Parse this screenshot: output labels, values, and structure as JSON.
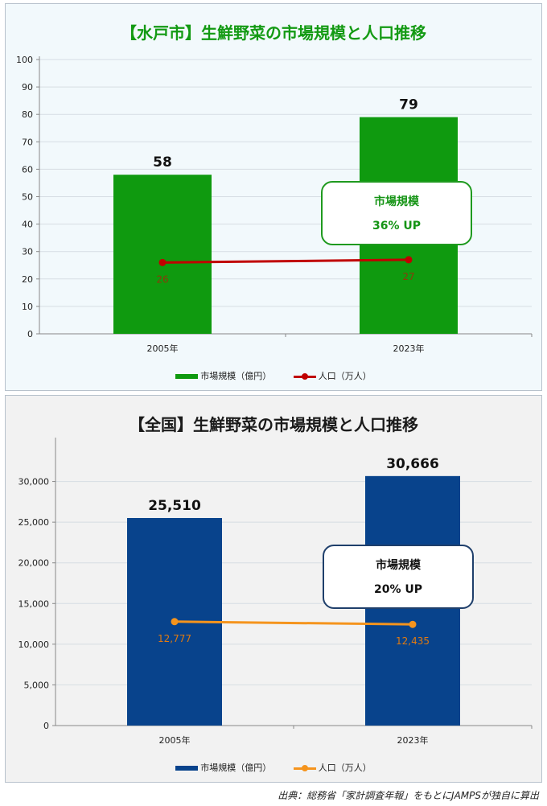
{
  "chart_data": [
    {
      "type": "bar",
      "title": "【水戸市】生鮮野菜の市場規模と人口推移",
      "categories": [
        "2005年",
        "2023年"
      ],
      "series": [
        {
          "name": "市場規模（億円）",
          "type": "bar",
          "values": [
            58,
            79
          ],
          "color": "#0f9a0f"
        },
        {
          "name": "人口（万人）",
          "type": "line",
          "values": [
            26,
            27
          ],
          "color": "#c00000"
        }
      ],
      "ylim": [
        0,
        100
      ],
      "yticks": [
        "0",
        "10",
        "20",
        "30",
        "40",
        "50",
        "60",
        "70",
        "80",
        "90",
        "100"
      ],
      "bar_labels": [
        "58",
        "79"
      ],
      "line_labels": [
        "26",
        "27"
      ],
      "line_label_color": "#8b3a0a",
      "grid": true,
      "legend": "bottom",
      "callout": {
        "line1": "市場規模",
        "line2": "36% UP"
      }
    },
    {
      "type": "bar",
      "title": "【全国】生鮮野菜の市場規模と人口推移",
      "categories": [
        "2005年",
        "2023年"
      ],
      "series": [
        {
          "name": "市場規模（億円）",
          "type": "bar",
          "values": [
            25510,
            30666
          ],
          "color": "#08438c"
        },
        {
          "name": "人口（万人）",
          "type": "line",
          "values": [
            12777,
            12435
          ],
          "color": "#f5941d"
        }
      ],
      "ylim": [
        0,
        35000
      ],
      "yticks": [
        "0",
        "5,000",
        "10,000",
        "15,000",
        "20,000",
        "25,000",
        "30,000"
      ],
      "bar_labels": [
        "25,510",
        "30,666"
      ],
      "line_labels": [
        "12,777",
        "12,435"
      ],
      "line_label_color": "#e07a10",
      "grid": true,
      "legend": "bottom",
      "callout": {
        "line1": "市場規模",
        "line2": "20% UP"
      }
    }
  ],
  "source_note": "出典：総務省「家計調査年報」をもとにJAMPSが独自に算出"
}
